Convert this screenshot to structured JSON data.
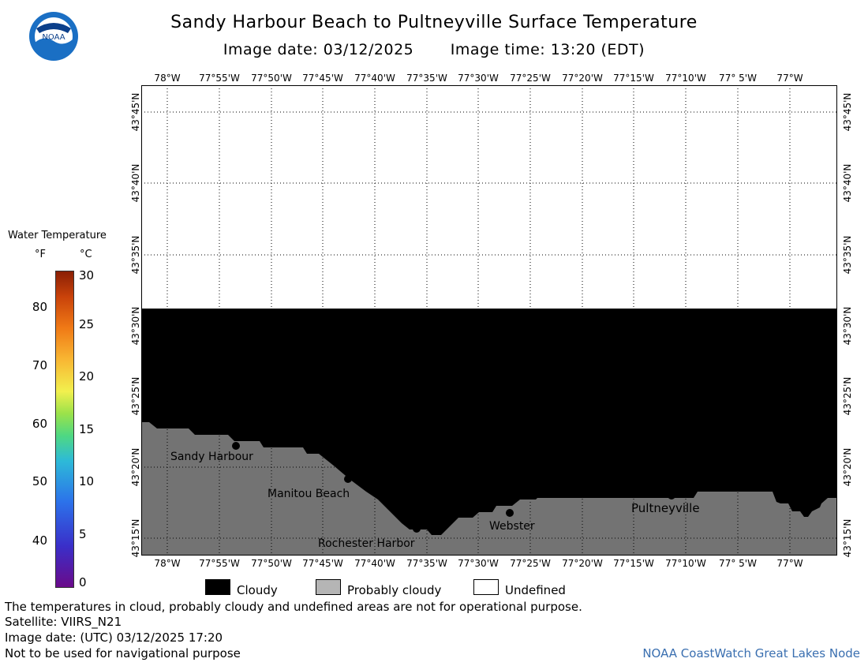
{
  "header": {
    "title": "Sandy Harbour Beach to Pultneyville Surface Temperature",
    "image_date": "Image date: 03/12/2025",
    "image_time": "Image time: 13:20 (EDT)",
    "logo_text": "NOAA"
  },
  "legend": {
    "title": "Water Temperature",
    "unit_f": "°F",
    "unit_c": "°C",
    "ticks_f": [
      "80",
      "70",
      "60",
      "50",
      "40"
    ],
    "ticks_c": [
      "30",
      "25",
      "20",
      "15",
      "10",
      "5",
      "0"
    ]
  },
  "map": {
    "lon_labels": [
      "78°W",
      "77°55'W",
      "77°50'W",
      "77°45'W",
      "77°40'W",
      "77°35'W",
      "77°30'W",
      "77°25'W",
      "77°20'W",
      "77°15'W",
      "77°10'W",
      "77° 5'W",
      "77°W"
    ],
    "lat_labels": [
      "43°45'N",
      "43°40'N",
      "43°35'N",
      "43°30'N",
      "43°25'N",
      "43°20'N",
      "43°15'N"
    ],
    "places": [
      {
        "name": "Sandy Harbour"
      },
      {
        "name": "Manitou Beach"
      },
      {
        "name": "Rochester Harbor"
      },
      {
        "name": "Webster"
      },
      {
        "name": "Pultneyville"
      }
    ],
    "colors": {
      "cloudy": "#000000",
      "probably_cloudy": "#737373",
      "undefined": "#ffffff"
    }
  },
  "bottom_legend": {
    "cloudy": "Cloudy",
    "probably_cloudy": "Probably cloudy",
    "undefined": "Undefined"
  },
  "notes": {
    "disclaimer": "The temperatures in cloud, probably cloudy and undefined areas are not for operational purpose.",
    "satellite": "Satellite: VIIRS_N21",
    "utc_date": "Image date: (UTC) 03/12/2025  17:20",
    "nav": "Not to be used for navigational purpose",
    "credit": "NOAA CoastWatch Great Lakes Node"
  }
}
